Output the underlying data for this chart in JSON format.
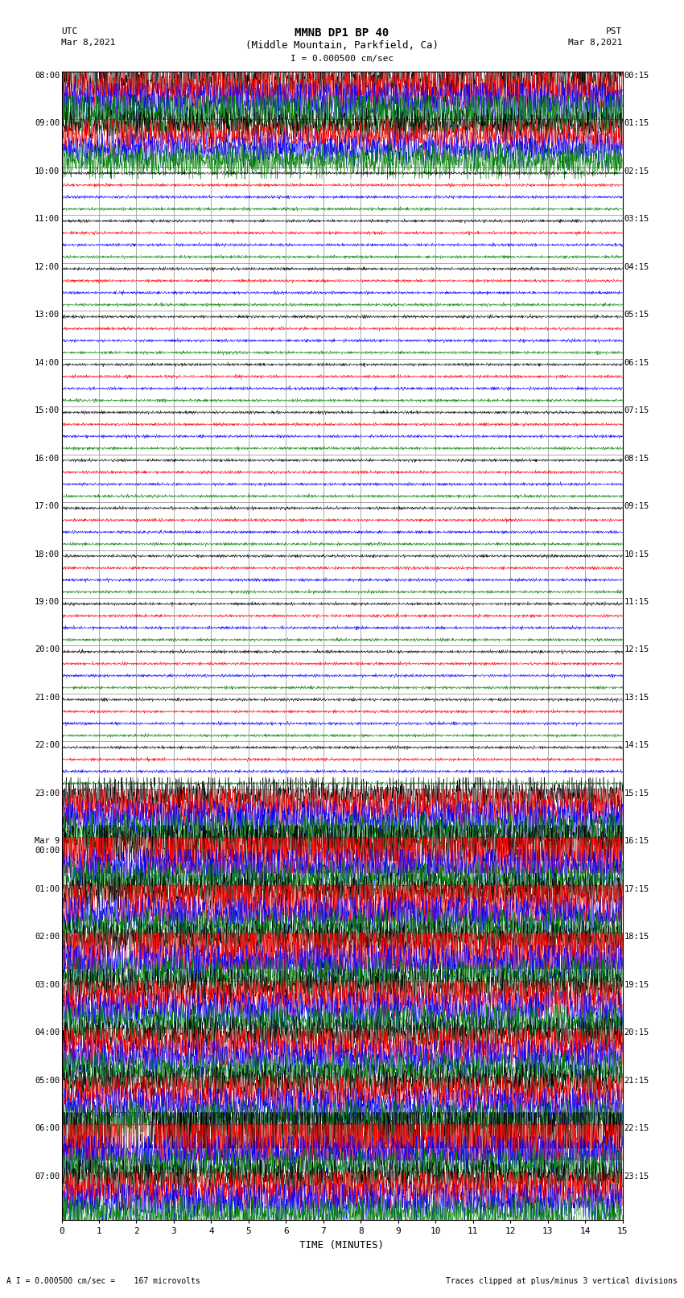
{
  "title_line1": "MMNB DP1 BP 40",
  "title_line2": "(Middle Mountain, Parkfield, Ca)",
  "scale_label": "I = 0.000500 cm/sec",
  "utc_label": "UTC",
  "utc_date": "Mar 8,2021",
  "pst_label": "PST",
  "pst_date": "Mar 8,2021",
  "xlabel": "TIME (MINUTES)",
  "footer_left": "A I = 0.000500 cm/sec =    167 microvolts",
  "footer_right": "Traces clipped at plus/minus 3 vertical divisions",
  "left_times": [
    "08:00",
    "09:00",
    "10:00",
    "11:00",
    "12:00",
    "13:00",
    "14:00",
    "15:00",
    "16:00",
    "17:00",
    "18:00",
    "19:00",
    "20:00",
    "21:00",
    "22:00",
    "23:00",
    "Mar 9\n00:00",
    "01:00",
    "02:00",
    "03:00",
    "04:00",
    "05:00",
    "06:00",
    "07:00"
  ],
  "right_times": [
    "00:15",
    "01:15",
    "02:15",
    "03:15",
    "04:15",
    "05:15",
    "06:15",
    "07:15",
    "08:15",
    "09:15",
    "10:15",
    "11:15",
    "12:15",
    "13:15",
    "14:15",
    "15:15",
    "16:15",
    "17:15",
    "18:15",
    "19:15",
    "20:15",
    "21:15",
    "22:15",
    "23:15"
  ],
  "n_rows": 24,
  "n_traces_per_row": 4,
  "colors": [
    "black",
    "red",
    "blue",
    "green"
  ],
  "bg_color": "white",
  "fig_width": 8.5,
  "fig_height": 16.13,
  "dpi": 100,
  "xmin": 0,
  "xmax": 15,
  "xticks": [
    0,
    1,
    2,
    3,
    4,
    5,
    6,
    7,
    8,
    9,
    10,
    11,
    12,
    13,
    14,
    15
  ]
}
